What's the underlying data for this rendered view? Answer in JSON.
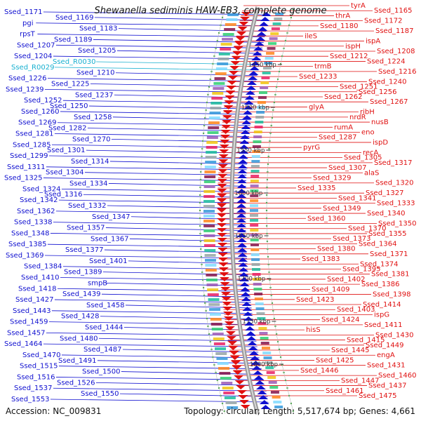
{
  "title": "Shewanella sediminis HAW-EB3, complete genome",
  "accession": "Accession: NC_009831",
  "topology": "Topology: circular; Length: 5,517,674 bp; Genes: 4,661",
  "colors": {
    "plus": "#1010d0",
    "minus": "#e01010",
    "rna": "#18b0d0",
    "ruler": "#333333"
  },
  "scale_labels": [
    "1450 kbp",
    "1500 kbp",
    "1550 kbp",
    "1600 kbp",
    "1650 kbp",
    "1700 kbp",
    "1750 kbp",
    "1800 kbp"
  ],
  "left_genes": [
    "Ssed_1171",
    "Ssed_1169",
    "pgi",
    "Ssed_1183",
    "rpsT",
    "Ssed_1189",
    "Ssed_1207",
    "Ssed_1205",
    "Ssed_1204",
    "Ssed_R0030",
    "Ssed_R0029",
    "Ssed_1210",
    "Ssed_1226",
    "Ssed_1225",
    "Ssed_1239",
    "Ssed_1237",
    "Ssed_1252",
    "Ssed_1250",
    "Ssed_1260",
    "Ssed_1258",
    "Ssed_1269",
    "Ssed_1282",
    "Ssed_1281",
    "Ssed_1270",
    "Ssed_1285",
    "Ssed_1301",
    "Ssed_1299",
    "Ssed_1314",
    "Ssed_1311",
    "Ssed_1304",
    "Ssed_1325",
    "Ssed_1334",
    "Ssed_1324",
    "Ssed_1316",
    "Ssed_1342",
    "Ssed_1332",
    "Ssed_1362",
    "Ssed_1347",
    "Ssed_1338",
    "Ssed_1357",
    "Ssed_1348",
    "Ssed_1367",
    "Ssed_1385",
    "Ssed_1377",
    "Ssed_1369",
    "Ssed_1401",
    "Ssed_1384",
    "Ssed_1389",
    "Ssed_1410",
    "smpB",
    "Ssed_1418",
    "Ssed_1439",
    "Ssed_1427",
    "Ssed_1458",
    "Ssed_1443",
    "Ssed_1428",
    "Ssed_1459",
    "Ssed_1444",
    "Ssed_1457",
    "Ssed_1480",
    "Ssed_1464",
    "Ssed_1487",
    "Ssed_1470",
    "Ssed_1491",
    "Ssed_1515",
    "Ssed_1500",
    "Ssed_1516",
    "Ssed_1526",
    "Ssed_1537",
    "Ssed_1550",
    "Ssed_1553"
  ],
  "right_genes": [
    "tyrA",
    "Ssed_1165",
    "thrA",
    "Ssed_1172",
    "Ssed_1180",
    "Ssed_1187",
    "ileS",
    "ispA",
    "ispH",
    "Ssed_1208",
    "Ssed_1212",
    "Ssed_1224",
    "trmB",
    "Ssed_1216",
    "Ssed_1233",
    "Ssed_1240",
    "Ssed_1251",
    "Ssed_1256",
    "Ssed_1262",
    "Ssed_1267",
    "glyA",
    "ribH",
    "nrdR",
    "nusB",
    "rumA",
    "eno",
    "Ssed_1287",
    "ispD",
    "pyrG",
    "recA",
    "Ssed_1305",
    "Ssed_1317",
    "Ssed_1307",
    "alaS",
    "Ssed_1329",
    "Ssed_1320",
    "Ssed_1335",
    "Ssed_1327",
    "Ssed_1341",
    "Ssed_1333",
    "Ssed_1349",
    "Ssed_1340",
    "Ssed_1360",
    "Ssed_1350",
    "Ssed_1370",
    "Ssed_1355",
    "Ssed_1373",
    "Ssed_1364",
    "Ssed_1380",
    "Ssed_1371",
    "Ssed_1383",
    "Ssed_1374",
    "Ssed_1395",
    "Ssed_1381",
    "Ssed_1402",
    "Ssed_1386",
    "Ssed_1409",
    "Ssed_1398",
    "Ssed_1423",
    "Ssed_1414",
    "Ssed_1403",
    "ispG",
    "Ssed_1424",
    "Ssed_1411",
    "hisS",
    "Ssed_1430",
    "Ssed_1415",
    "Ssed_1449",
    "Ssed_1445",
    "engA",
    "Ssed_1425",
    "Ssed_1431",
    "Ssed_1446",
    "Ssed_1460",
    "Ssed_1447",
    "Ssed_1437",
    "Ssed_1461",
    "Ssed_1475"
  ]
}
